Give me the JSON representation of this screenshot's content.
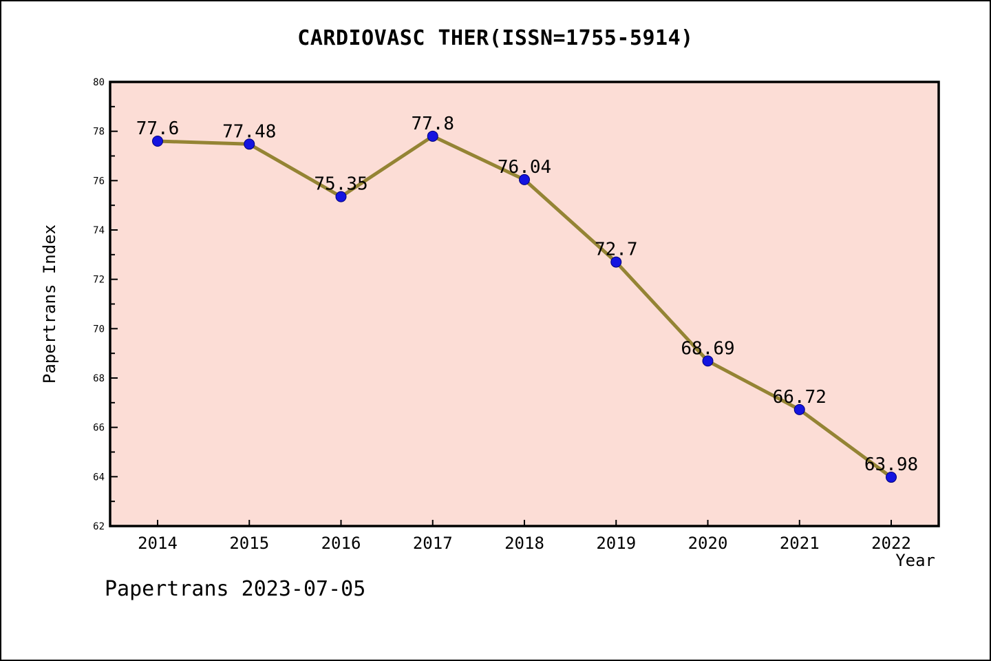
{
  "header": {
    "title": "CARDIOVASC THER(ISSN=1755-5914)"
  },
  "footer": {
    "text": "Papertrans 2023-07-05"
  },
  "chart_data": {
    "type": "line",
    "title": "CARDIOVASC THER(ISSN=1755-5914)",
    "xlabel": "Year",
    "ylabel": "Papertrans Index",
    "categories": [
      "2014",
      "2015",
      "2016",
      "2017",
      "2018",
      "2019",
      "2020",
      "2021",
      "2022"
    ],
    "values": [
      77.6,
      77.48,
      75.35,
      77.8,
      76.04,
      72.7,
      68.69,
      66.72,
      63.98
    ],
    "point_labels": [
      "77.6",
      "77.48",
      "75.35",
      "77.8",
      "76.04",
      "72.7",
      "68.69",
      "66.72",
      "63.98"
    ],
    "ylim": [
      62,
      80
    ],
    "y_major_step": 2,
    "y_minor_step": 1,
    "grid": false,
    "legend": "none",
    "colors": {
      "plot_background": "#fcddd6",
      "line": "#948434",
      "marker": "#1414e0",
      "marker_edge": "#00007a",
      "axis": "#000000",
      "text": "#000000",
      "page_background": "#ffffff"
    }
  }
}
